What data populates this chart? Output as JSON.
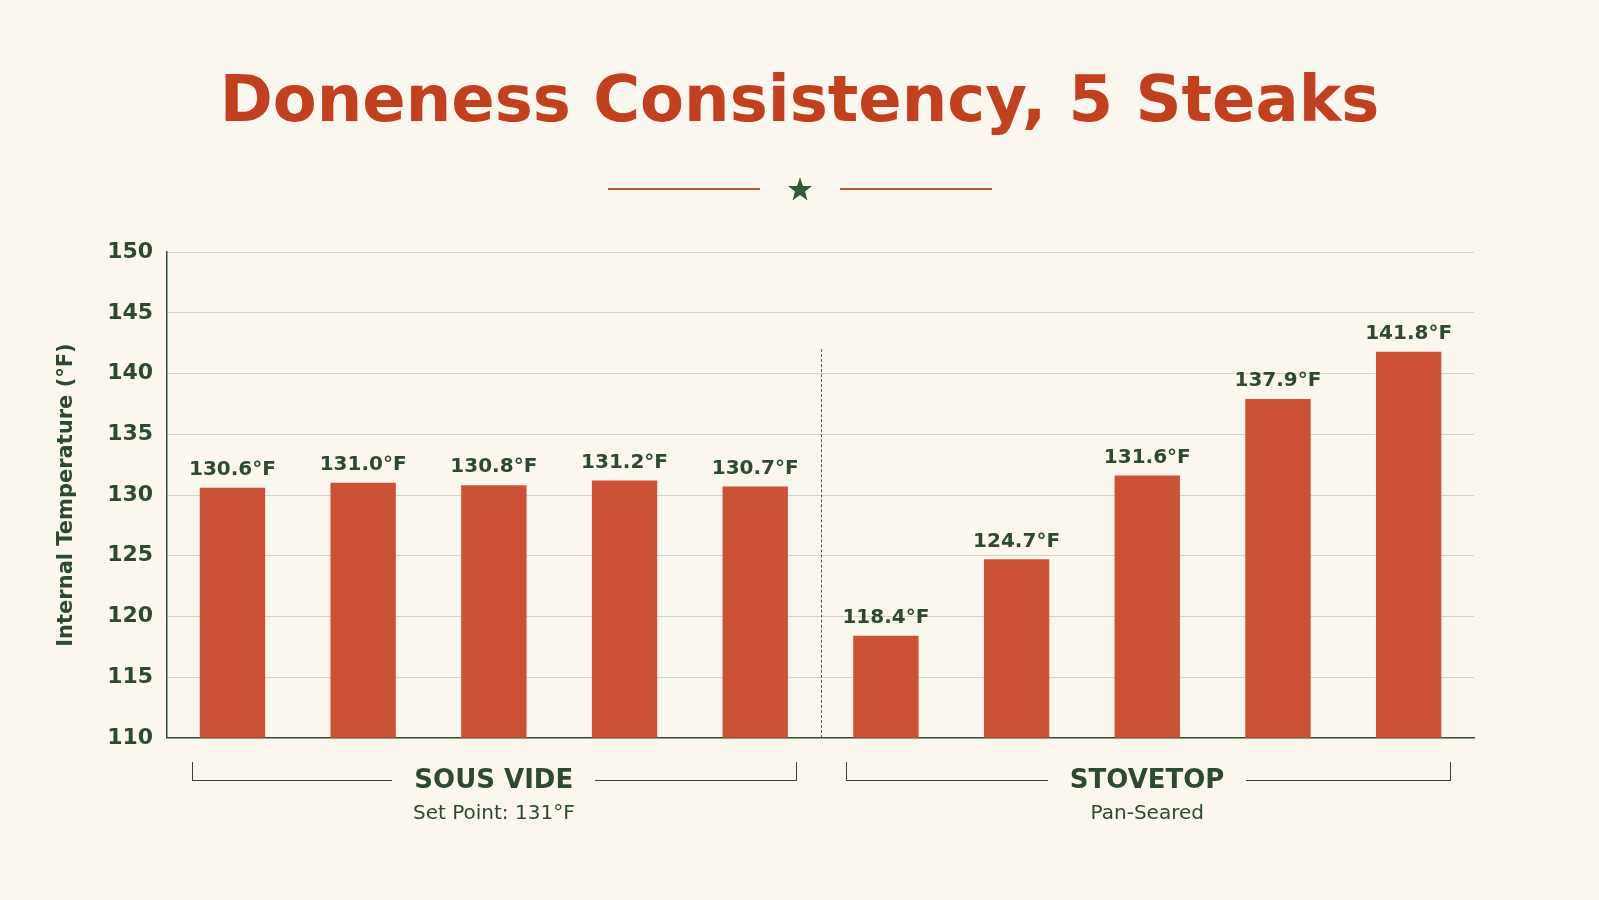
{
  "chart_data": {
    "type": "bar",
    "title": "Doneness Consistency, 5 Steaks",
    "ylabel": "Internal Temperature (°F)",
    "categories": [
      null,
      null,
      null,
      null,
      null,
      null,
      null,
      null,
      null,
      null
    ],
    "values": [
      130.6,
      131.0,
      130.8,
      131.2,
      130.7,
      118.4,
      124.7,
      131.6,
      137.9,
      141.8
    ],
    "color": "#cc5237",
    "value_labels": [
      "130.6°F",
      "131.0°F",
      "130.8°F",
      "131.2°F",
      "130.7°F",
      "118.4°F",
      "124.7°F",
      "131.6°F",
      "137.9°F",
      "141.8°F"
    ],
    "ylim": [
      110,
      150
    ],
    "yticks": [
      110,
      115,
      120,
      125,
      130,
      135,
      140,
      145,
      150
    ],
    "grid": "y",
    "annotations": [
      "SOUS VIDE",
      "Set Point: 131°F",
      "STOVETOP",
      "Pan-Seared"
    ]
  }
}
